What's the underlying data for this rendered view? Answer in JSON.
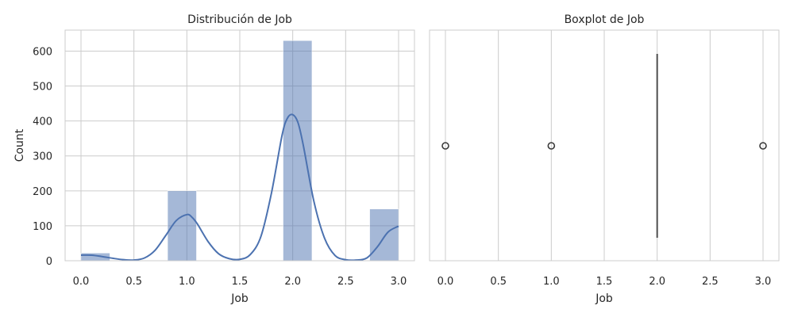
{
  "chart_data": [
    {
      "type": "bar",
      "title": "Distribución de Job",
      "xlabel": "Job",
      "ylabel": "Count",
      "xlim": [
        -0.15,
        3.15
      ],
      "ylim": [
        0,
        660
      ],
      "x_ticks": [
        "0.0",
        "0.5",
        "1.0",
        "1.5",
        "2.0",
        "2.5",
        "3.0"
      ],
      "y_ticks": [
        "0",
        "100",
        "200",
        "300",
        "400",
        "500",
        "600"
      ],
      "grid": true,
      "bar_color": "#4c72b0",
      "kde_color": "#4c72b0",
      "bins": [
        {
          "x0": 0.0,
          "x1": 0.273,
          "value": 22
        },
        {
          "x0": 0.818,
          "x1": 1.091,
          "value": 200
        },
        {
          "x0": 1.909,
          "x1": 2.182,
          "value": 630
        },
        {
          "x0": 2.727,
          "x1": 3.0,
          "value": 148
        }
      ],
      "kde": {
        "x": [
          0.0,
          0.1,
          0.2,
          0.3,
          0.4,
          0.5,
          0.6,
          0.7,
          0.8,
          0.9,
          1.0,
          1.05,
          1.1,
          1.2,
          1.3,
          1.4,
          1.5,
          1.6,
          1.7,
          1.8,
          1.9,
          1.95,
          2.0,
          2.05,
          2.1,
          2.2,
          2.3,
          2.4,
          2.5,
          2.6,
          2.7,
          2.8,
          2.9,
          3.0
        ],
        "y": [
          16,
          16,
          12,
          7,
          3,
          2,
          8,
          30,
          72,
          115,
          132,
          124,
          105,
          55,
          20,
          6,
          4,
          18,
          70,
          195,
          360,
          408,
          418,
          395,
          330,
          170,
          65,
          15,
          3,
          2,
          8,
          40,
          82,
          99
        ]
      }
    },
    {
      "type": "boxplot",
      "title": "Boxplot de Job",
      "xlabel": "Job",
      "xlim": [
        -0.15,
        3.15
      ],
      "x_ticks": [
        "0.0",
        "0.5",
        "1.0",
        "1.5",
        "2.0",
        "2.5",
        "3.0"
      ],
      "grid": true,
      "median": 2.0,
      "q1": 2.0,
      "q3": 2.0,
      "whisker_low": 2.0,
      "whisker_high": 2.0,
      "outliers": [
        0.0,
        1.0,
        3.0
      ]
    }
  ]
}
